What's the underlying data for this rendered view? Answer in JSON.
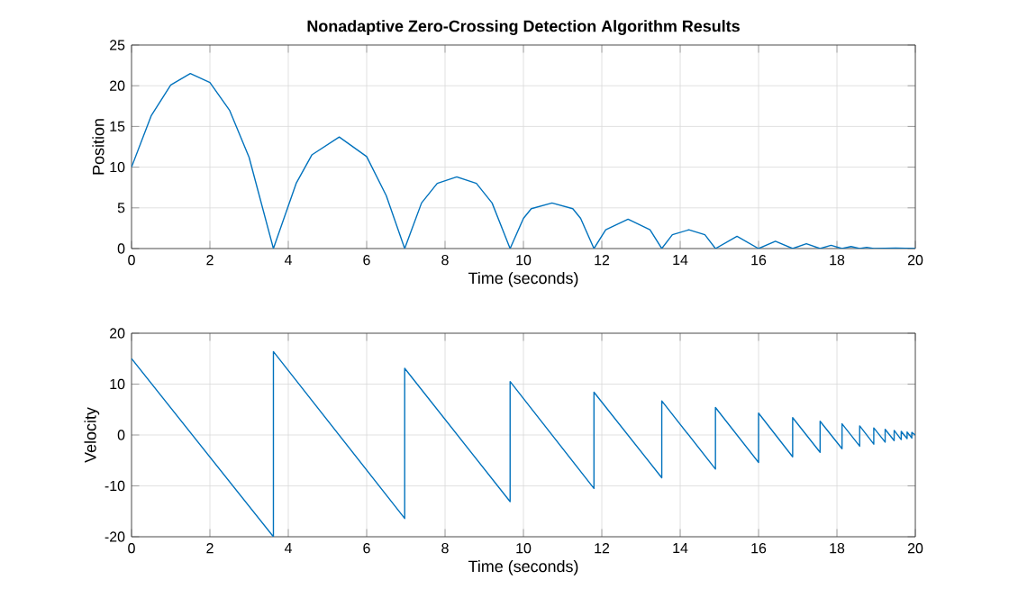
{
  "chart_data": [
    {
      "type": "line",
      "title": "Nonadaptive Zero-Crossing Detection Algorithm Results",
      "xlabel": "Time (seconds)",
      "ylabel": "Position",
      "grid": true,
      "xlim": [
        0,
        20
      ],
      "ylim": [
        0,
        25
      ],
      "xticks": [
        0,
        2,
        4,
        6,
        8,
        10,
        12,
        14,
        16,
        18,
        20
      ],
      "yticks": [
        0,
        5,
        10,
        15,
        20,
        25
      ],
      "series": [
        {
          "color": "#0072bd",
          "x": [
            0,
            0.5,
            1,
            1.5,
            2,
            2.5,
            3,
            3.62,
            4.2,
            4.6,
            5.3,
            6.0,
            6.5,
            6.97,
            7.4,
            7.8,
            8.3,
            8.8,
            9.2,
            9.66,
            10.0,
            10.2,
            10.73,
            11.26,
            11.46,
            11.8,
            12.1,
            12.67,
            13.23,
            13.53,
            13.8,
            14.22,
            14.63,
            14.9,
            15.45,
            16.0,
            16.43,
            16.87,
            17.22,
            17.57,
            17.85,
            18.13,
            18.36,
            18.58,
            18.76,
            18.94,
            19.5,
            20
          ],
          "values": [
            10,
            16.3,
            20.1,
            21.5,
            20.4,
            17,
            11.2,
            0,
            8,
            11.5,
            13.7,
            11.3,
            6.5,
            0,
            5.6,
            8,
            8.8,
            8,
            5.6,
            0,
            3.7,
            4.9,
            5.6,
            4.9,
            3.7,
            0,
            2.3,
            3.6,
            2.3,
            0,
            1.7,
            2.3,
            1.7,
            0,
            1.5,
            0,
            0.9,
            0,
            0.6,
            0,
            0.4,
            0,
            0.25,
            0,
            0.15,
            0,
            0.05,
            0
          ]
        }
      ]
    },
    {
      "type": "line",
      "xlabel": "Time (seconds)",
      "ylabel": "Velocity",
      "grid": true,
      "xlim": [
        0,
        20
      ],
      "ylim": [
        -20,
        20
      ],
      "xticks": [
        0,
        2,
        4,
        6,
        8,
        10,
        12,
        14,
        16,
        18,
        20
      ],
      "yticks": [
        -20,
        -10,
        0,
        10,
        20
      ],
      "series": [
        {
          "color": "#0072bd",
          "x": [
            0,
            3.62,
            3.62,
            6.97,
            6.97,
            9.66,
            9.66,
            11.8,
            11.8,
            13.53,
            13.53,
            14.9,
            14.9,
            16.0,
            16.0,
            16.87,
            16.87,
            17.57,
            17.57,
            18.13,
            18.13,
            18.58,
            18.58,
            18.94,
            18.94,
            19.23,
            19.23,
            19.46,
            19.46,
            19.64,
            19.64,
            19.79,
            19.79,
            19.91,
            19.91,
            20
          ],
          "values": [
            15,
            -20,
            16.4,
            -16.4,
            13.1,
            -13.1,
            10.5,
            -10.5,
            8.4,
            -8.4,
            6.7,
            -6.7,
            5.4,
            -5.4,
            4.3,
            -4.3,
            3.4,
            -3.4,
            2.7,
            -2.7,
            2.2,
            -2.2,
            1.8,
            -1.8,
            1.4,
            -1.4,
            1.1,
            -1.1,
            0.9,
            -0.9,
            0.7,
            -0.7,
            0.6,
            -0.6,
            0.5,
            0
          ]
        }
      ]
    }
  ]
}
